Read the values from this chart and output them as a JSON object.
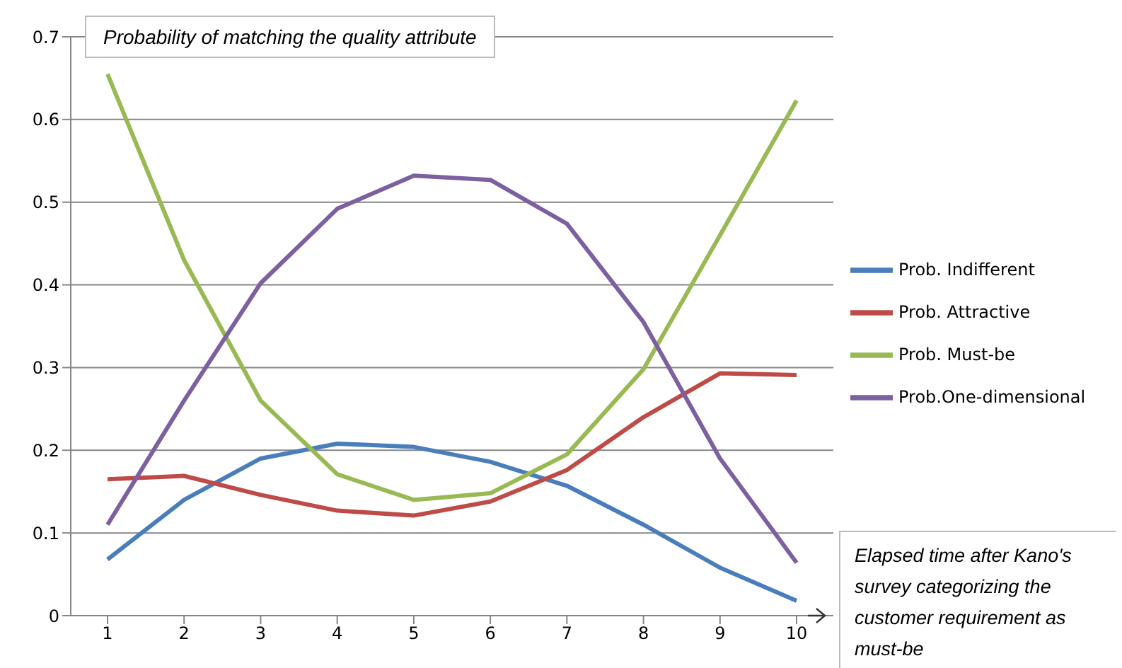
{
  "chart_data": {
    "type": "line",
    "ylabel": "Probability of matching the quality attribute",
    "annotations": [
      "Elapsed time after Kano's survey categorizing the customer requirement as must-be"
    ],
    "categories": [
      "1",
      "2",
      "3",
      "4",
      "5",
      "6",
      "7",
      "8",
      "9",
      "10"
    ],
    "series": [
      {
        "name": "Prob. Indifferent",
        "color": "#4a7ebb",
        "values": [
          0.068,
          0.14,
          0.19,
          0.208,
          0.204,
          0.186,
          0.157,
          0.11,
          0.058,
          0.018
        ]
      },
      {
        "name": "Prob. Attractive",
        "color": "#be4b48",
        "values": [
          0.165,
          0.169,
          0.146,
          0.127,
          0.121,
          0.138,
          0.176,
          0.24,
          0.293,
          0.291
        ]
      },
      {
        "name": "Prob. Must-be",
        "color": "#98b954",
        "values": [
          0.655,
          0.43,
          0.26,
          0.171,
          0.14,
          0.148,
          0.195,
          0.298,
          0.46,
          0.623
        ]
      },
      {
        "name": "Prob.One-dimensional",
        "color": "#7d60a0",
        "values": [
          0.11,
          0.26,
          0.402,
          0.492,
          0.532,
          0.527,
          0.474,
          0.355,
          0.19,
          0.064
        ]
      }
    ],
    "ylim": [
      0,
      0.7
    ],
    "yticks": [
      0,
      0.1,
      0.2,
      0.3,
      0.4,
      0.5,
      0.6,
      0.7
    ],
    "grid": "y",
    "legend": "right",
    "marker": "none",
    "line_style": "solid"
  }
}
